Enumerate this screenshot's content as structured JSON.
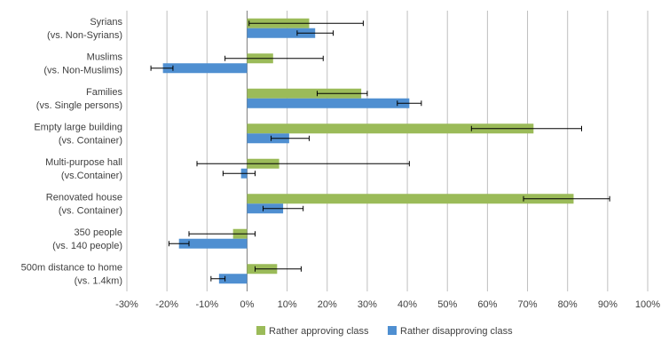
{
  "chart_data": {
    "type": "bar",
    "orientation": "horizontal",
    "categories": [
      [
        "Syrians",
        "(vs. Non-Syrians)"
      ],
      [
        "Muslims",
        "(vs. Non-Muslims)"
      ],
      [
        "Families",
        "(vs. Single persons)"
      ],
      [
        "Empty large building",
        "(vs. Container)"
      ],
      [
        "Multi-purpose hall",
        "(vs.Container)"
      ],
      [
        "Renovated house",
        "(vs. Container)"
      ],
      [
        "350 people",
        "(vs. 140 people)"
      ],
      [
        "500m distance to home",
        "(vs. 1.4km)"
      ]
    ],
    "series": [
      {
        "name": "Rather approving class",
        "color": "#9bbb59",
        "values": [
          15.5,
          6.5,
          28.5,
          71.5,
          8,
          81.5,
          -3.5,
          7.5
        ],
        "err_low": [
          0.5,
          -5.5,
          17.5,
          56,
          -12.5,
          69,
          -14.5,
          2
        ],
        "err_high": [
          29,
          19,
          30,
          83.5,
          40.5,
          90.5,
          2,
          13.5
        ]
      },
      {
        "name": "Rather disapproving class",
        "color": "#4f8fd1",
        "values": [
          17,
          -21,
          40.5,
          10.5,
          -1.5,
          9,
          -17,
          -7
        ],
        "err_low": [
          12.5,
          -24,
          37.5,
          6,
          -6,
          4,
          -19.5,
          -9
        ],
        "err_high": [
          21.5,
          -18.5,
          43.5,
          15.5,
          2,
          14,
          -14.5,
          -5.5
        ]
      }
    ],
    "xlim": [
      -30,
      100
    ],
    "xticks": [
      -30,
      -20,
      -10,
      0,
      10,
      20,
      30,
      40,
      50,
      60,
      70,
      80,
      90,
      100
    ],
    "xtick_labels": [
      "-30%",
      "-20%",
      "-10%",
      "0%",
      "10%",
      "20%",
      "30%",
      "40%",
      "50%",
      "60%",
      "70%",
      "80%",
      "90%",
      "100%"
    ],
    "grid": true,
    "legend_position": "bottom",
    "title": "",
    "xlabel": "",
    "ylabel": ""
  }
}
